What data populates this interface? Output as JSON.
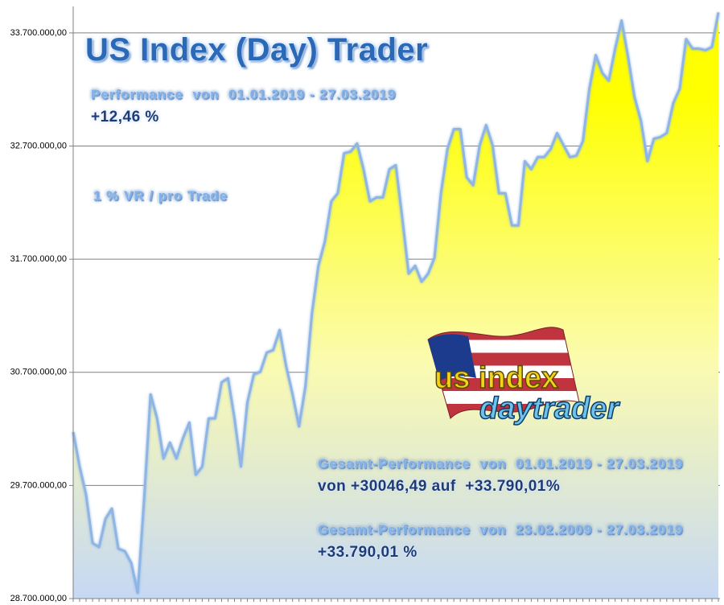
{
  "chart_data": {
    "type": "area",
    "title": "US Index (Day) Trader",
    "annotations": [
      "Performance  von  01.01.2019 - 27.03.2019",
      "+12,46 %",
      "1 % VR / pro Trade",
      "Gesamt-Performance  von  01.01.2019 - 27.03.2019",
      "von +30046,49 auf  +33.790,01%",
      "Gesamt-Performance  von  23.02.2009 - 27.03.2019",
      "+33.790,01 %"
    ],
    "logo": [
      "us index",
      "daytrader"
    ],
    "values": [
      30171000,
      29866000,
      29617000,
      29190000,
      29155000,
      29404000,
      29496000,
      29141000,
      29119000,
      29013000,
      28750000,
      29581000,
      30505000,
      30292000,
      29937000,
      30079000,
      29937000,
      30114000,
      30256000,
      29794000,
      29866000,
      30292000,
      30292000,
      30612000,
      30647000,
      30292000,
      29866000,
      30434000,
      30683000,
      30704000,
      30875000,
      30896000,
      31074000,
      30754000,
      30505000,
      30221000,
      30576000,
      31216000,
      31642000,
      31856000,
      32211000,
      32282000,
      32637000,
      32651000,
      32723000,
      32495000,
      32211000,
      32246000,
      32246000,
      32495000,
      32531000,
      32069000,
      31571000,
      31642000,
      31500000,
      31571000,
      31713000,
      32282000,
      32673000,
      32850000,
      32850000,
      32424000,
      32353000,
      32708000,
      32886000,
      32708000,
      32282000,
      32282000,
      31998000,
      31998000,
      32566000,
      32495000,
      32602000,
      32602000,
      32673000,
      32815000,
      32708000,
      32602000,
      32616000,
      32744000,
      33206000,
      33504000,
      33348000,
      33277000,
      33561000,
      33810000,
      33490000,
      33135000,
      32922000,
      32566000,
      32765000,
      32779000,
      32815000,
      33078000,
      33206000,
      33646000,
      33561000,
      33561000,
      33547000,
      33575000,
      33881000
    ],
    "line_color": "#8fb5e4",
    "fill_top": "#ffff00",
    "fill_mid": "#fbfbb0",
    "fill_bottom": "#c6d8f4",
    "ylim": [
      28700000,
      33920000
    ],
    "yticks": [
      {
        "value": 28700000,
        "label": "28.700.000,00"
      },
      {
        "value": 29700000,
        "label": "29.700.000,00"
      },
      {
        "value": 30700000,
        "label": "30.700.000,00"
      },
      {
        "value": 31700000,
        "label": "31.700.000,00"
      },
      {
        "value": 32700000,
        "label": "32.700.000,00"
      },
      {
        "value": 33700000,
        "label": "33.700.000,00"
      }
    ],
    "grid": true
  }
}
